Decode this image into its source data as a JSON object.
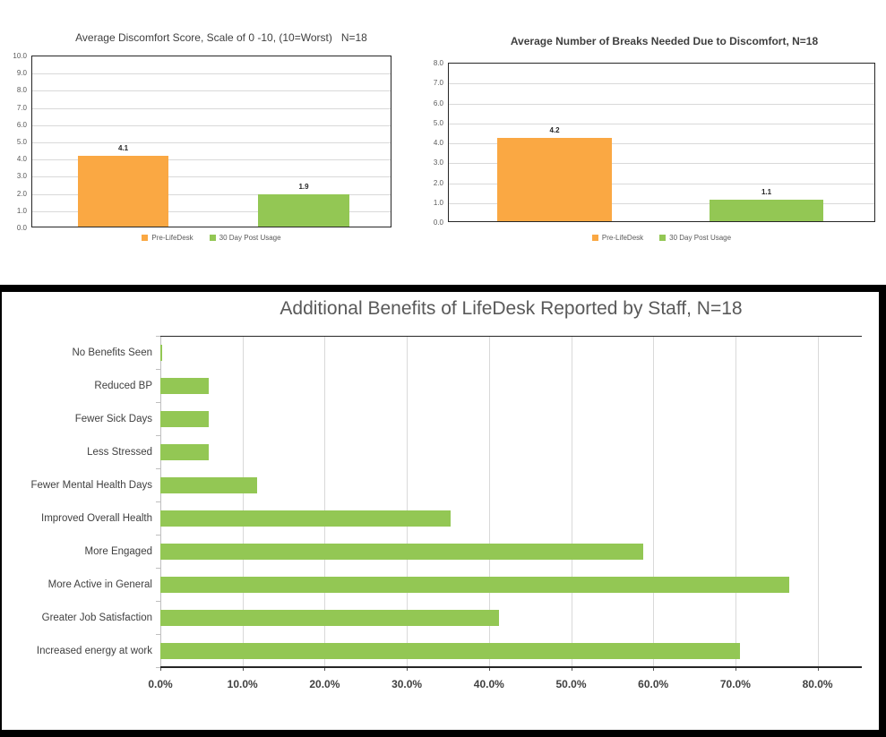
{
  "colors": {
    "orange": "#FAA843",
    "green": "#93C754",
    "gridline": "#D9D9D9",
    "axis_text": "#595959",
    "label_text": "#404040",
    "plot_border": "#262626",
    "frame": "#000000"
  },
  "chart_data": [
    {
      "type": "bar",
      "title": "Average Discomfort Score, Scale of 0 -10, (10=Worst)   N=18",
      "series": [
        {
          "name": "Pre-LifeDesk",
          "value": 4.1,
          "label": "4.1",
          "color": "#FAA843"
        },
        {
          "name": "30 Day Post Usage",
          "value": 1.9,
          "label": "1.9",
          "color": "#93C754"
        }
      ],
      "ylim": [
        0,
        10
      ],
      "yticks": [
        "10.0",
        "9.0",
        "8.0",
        "7.0",
        "6.0",
        "5.0",
        "4.0",
        "3.0",
        "2.0",
        "1.0",
        "0.0"
      ],
      "grid": "horizontal",
      "legend_position": "bottom"
    },
    {
      "type": "bar",
      "title": "Average Number of Breaks Needed Due to Discomfort, N=18",
      "series": [
        {
          "name": "Pre-LifeDesk",
          "value": 4.2,
          "label": "4.2",
          "color": "#FAA843"
        },
        {
          "name": "30 Day Post Usage",
          "value": 1.1,
          "label": "1.1",
          "color": "#93C754"
        }
      ],
      "ylim": [
        0,
        8
      ],
      "yticks": [
        "8.0",
        "7.0",
        "6.0",
        "5.0",
        "4.0",
        "3.0",
        "2.0",
        "1.0",
        "0.0"
      ],
      "grid": "horizontal",
      "legend_position": "bottom"
    },
    {
      "type": "bar",
      "orientation": "horizontal",
      "title": "Additional Benefits of LifeDesk Reported by Staff, N=18",
      "categories": [
        "No Benefits Seen",
        "Reduced BP",
        "Fewer Sick Days",
        "Less Stressed",
        "Fewer Mental Health Days",
        "Improved Overall Health",
        "More Engaged",
        "More Active in General",
        "Greater Job Satisfaction",
        "Increased energy at work"
      ],
      "values": [
        0.0,
        5.9,
        5.9,
        5.9,
        11.8,
        35.3,
        58.8,
        76.5,
        41.2,
        70.6
      ],
      "bar_color": "#93C754",
      "xlim": [
        0,
        80
      ],
      "xticks": [
        "0.0%",
        "10.0%",
        "20.0%",
        "30.0%",
        "40.0%",
        "50.0%",
        "60.0%",
        "70.0%",
        "80.0%"
      ],
      "grid": "vertical",
      "legend_position": "none"
    }
  ]
}
